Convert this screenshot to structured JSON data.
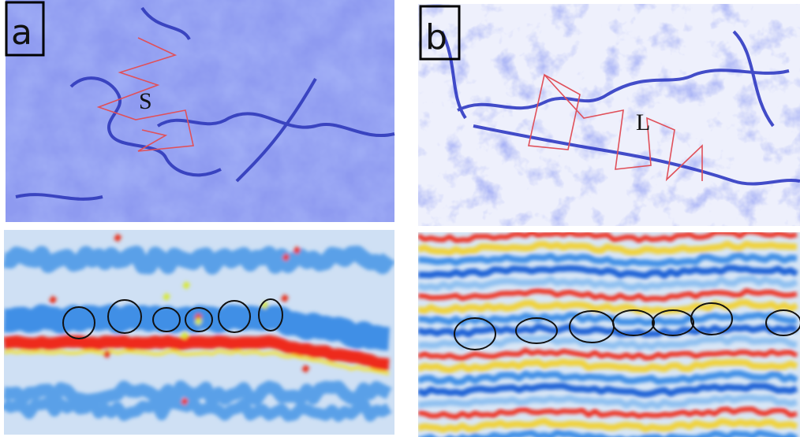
{
  "panels": [
    {
      "label": "a",
      "marker": "S"
    },
    {
      "label": "b",
      "marker": "L"
    }
  ]
}
